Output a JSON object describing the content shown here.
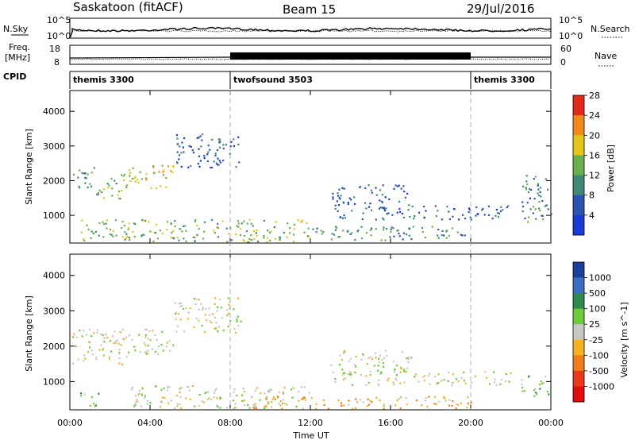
{
  "header": {
    "station": "Saskatoon (fitACF)",
    "beam": "Beam 15",
    "date": "29/Jul/2016"
  },
  "left_labels": {
    "nsky": "N.Sky",
    "freq": "Freq.",
    "mhz": "[MHz]",
    "cpid": "CPID"
  },
  "right_labels": {
    "nsearch": "N.Search",
    "nave": "Nave"
  },
  "small_ticks": {
    "nsky_top": "10^5",
    "nsky_bot": "10^0",
    "freq_top": "18",
    "freq_bot": "8",
    "search_top": "10^5",
    "search_bot": "10^0",
    "nave_top": "60",
    "nave_bot": "0"
  },
  "cpid_segments": [
    {
      "label": "themis 3300",
      "start_hour": 0,
      "end_hour": 8
    },
    {
      "label": "twofsound 3503",
      "start_hour": 8,
      "end_hour": 20
    },
    {
      "label": "themis 3300",
      "start_hour": 20,
      "end_hour": 24
    }
  ],
  "axes": {
    "xlabel": "Time UT",
    "xticks": [
      "00:00",
      "04:00",
      "08:00",
      "12:00",
      "16:00",
      "20:00",
      "00:00"
    ],
    "ylabel": "Slant Range [km]",
    "yticks": [
      "1000",
      "2000",
      "3000",
      "4000"
    ]
  },
  "power_scale": {
    "title": "Power [dB]",
    "labels": [
      "4",
      "8",
      "12",
      "16",
      "20",
      "24",
      "28"
    ],
    "colors": [
      "#1a3bd6",
      "#2d55b0",
      "#3f8a78",
      "#6bb04a",
      "#e4c61a",
      "#f08a1a",
      "#e02a1a"
    ]
  },
  "velocity_scale": {
    "title": "Velocity [m s^-1]",
    "labels": [
      "1000",
      "500",
      "100",
      "25",
      "-25",
      "-100",
      "-500",
      "-1000"
    ],
    "colors": [
      "#1b3f9a",
      "#3a6fc0",
      "#2f8a4f",
      "#6ecb3a",
      "#c8c8c2",
      "#f5b324",
      "#f07d1a",
      "#e83a1a",
      "#e00f0f"
    ]
  },
  "chart_data": [
    {
      "type": "heatmap",
      "title": "",
      "xlabel": "",
      "ylabel": "Slant Range [km]",
      "xlim": [
        0,
        24
      ],
      "ylim": [
        200,
        4600
      ],
      "colorbar": "Power [dB]",
      "regions": [
        {
          "t0": 0.1,
          "t1": 1.2,
          "r0": 1800,
          "r1": 2500,
          "level": 2
        },
        {
          "t0": 1.2,
          "t1": 2.8,
          "r0": 1500,
          "r1": 2200,
          "level": 3
        },
        {
          "t0": 2.8,
          "t1": 5.2,
          "r0": 1800,
          "r1": 2500,
          "level": 4
        },
        {
          "t0": 5.2,
          "t1": 8.5,
          "r0": 2400,
          "r1": 3400,
          "level": 1
        },
        {
          "t0": 0.5,
          "t1": 12.0,
          "r0": 250,
          "r1": 900,
          "level": 3
        },
        {
          "t0": 12.0,
          "t1": 20.0,
          "r0": 300,
          "r1": 700,
          "level": 2
        },
        {
          "t0": 13.0,
          "t1": 22.0,
          "r0": 900,
          "r1": 1300,
          "level": 1
        },
        {
          "t0": 13.0,
          "t1": 17.0,
          "r0": 1300,
          "r1": 1900,
          "level": 1
        },
        {
          "t0": 22.5,
          "t1": 24.0,
          "r0": 800,
          "r1": 2200,
          "level": 2
        }
      ]
    },
    {
      "type": "heatmap",
      "title": "",
      "xlabel": "Time UT",
      "ylabel": "Slant Range [km]",
      "xlim": [
        0,
        24
      ],
      "ylim": [
        200,
        4600
      ],
      "colorbar": "Velocity [m s^-1]",
      "regions": [
        {
          "t0": 0.1,
          "t1": 2.8,
          "r0": 1500,
          "r1": 2500,
          "level": 4
        },
        {
          "t0": 2.8,
          "t1": 5.2,
          "r0": 1800,
          "r1": 2500,
          "level": 4
        },
        {
          "t0": 5.2,
          "t1": 8.5,
          "r0": 2400,
          "r1": 3400,
          "level": 4
        },
        {
          "t0": 0.5,
          "t1": 1.5,
          "r0": 300,
          "r1": 700,
          "level": 3
        },
        {
          "t0": 3.0,
          "t1": 12.0,
          "r0": 250,
          "r1": 900,
          "level": 4
        },
        {
          "t0": 9.0,
          "t1": 20.0,
          "r0": 250,
          "r1": 600,
          "level": 5
        },
        {
          "t0": 13.0,
          "t1": 22.0,
          "r0": 900,
          "r1": 1300,
          "level": 4
        },
        {
          "t0": 13.0,
          "t1": 17.0,
          "r0": 1300,
          "r1": 1900,
          "level": 4
        },
        {
          "t0": 22.5,
          "t1": 24.0,
          "r0": 600,
          "r1": 1200,
          "level": 3
        }
      ]
    }
  ]
}
